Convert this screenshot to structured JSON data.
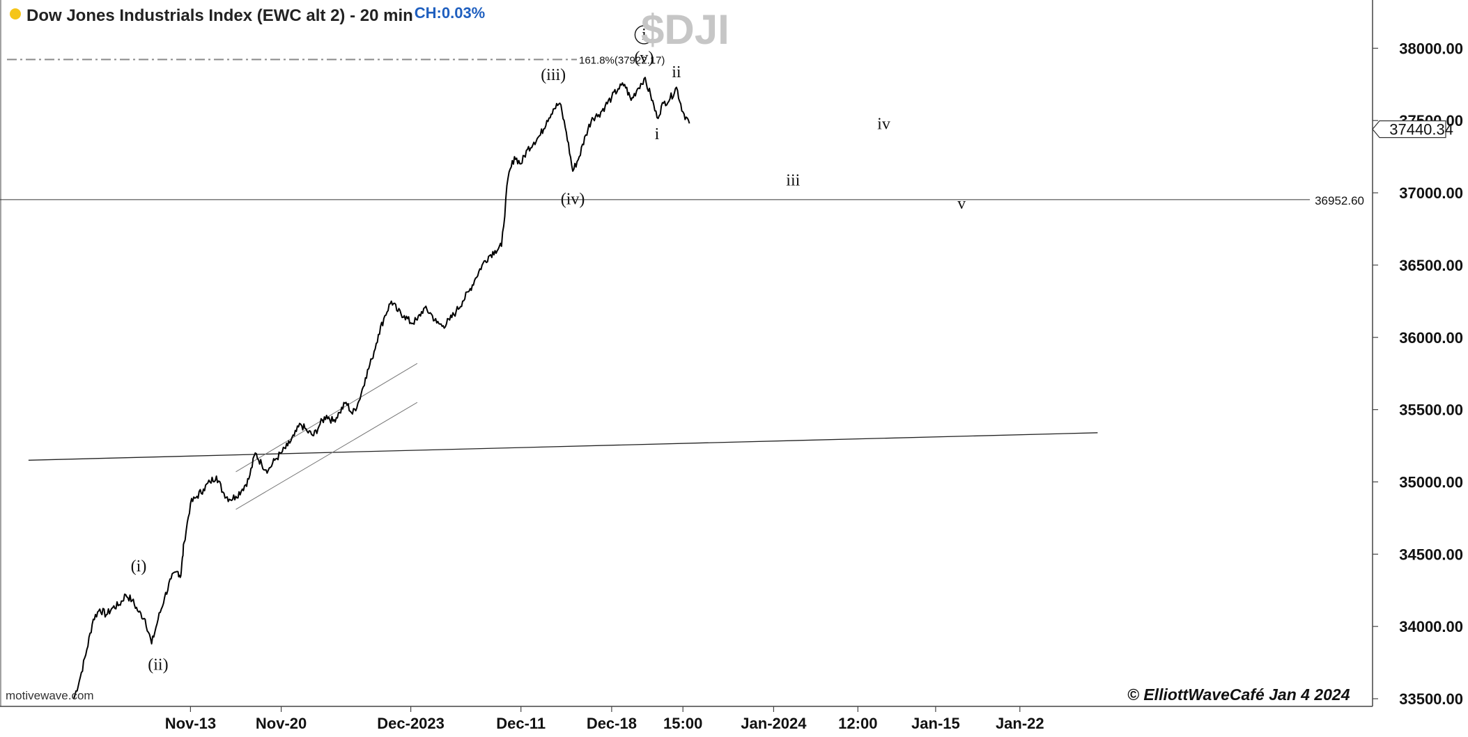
{
  "header": {
    "title": "Dow Jones Industrials Index (EWC alt 2) - 20 min",
    "change": "CH:0.03%",
    "symbol": "$DJI"
  },
  "footer": {
    "source": "motivewave.com",
    "copyright": "© ElliottWaveCafé Jan 4 2024"
  },
  "colors": {
    "price_line": "#000000",
    "fib_line": "#888888",
    "symbol_watermark": "#c6c6c6",
    "change_text": "#1f5fbf",
    "status_dot": "#f5c518"
  },
  "chart_data": {
    "type": "line",
    "title": "Dow Jones Industrials Index (EWC alt 2) - 20 min",
    "xlabel": "",
    "ylabel": "",
    "y_axis_side": "right",
    "ylim": [
      33500,
      38400
    ],
    "y_ticks": [
      33500,
      34000,
      34500,
      35000,
      35500,
      36000,
      36500,
      37000,
      37500,
      38000
    ],
    "y_tick_labels": [
      "33500.00",
      "34000.00",
      "34500.00",
      "35000.00",
      "35500.00",
      "36000.00",
      "36500.00",
      "37000.00",
      "37500.00",
      "38000.00"
    ],
    "x_ticks": [
      {
        "label": "Nov-13",
        "t": 18
      },
      {
        "label": "Nov-20",
        "t": 32
      },
      {
        "label": "Dec-2023",
        "t": 52
      },
      {
        "label": "Dec-11",
        "t": 69
      },
      {
        "label": "Dec-18",
        "t": 83
      },
      {
        "label": "15:00",
        "t": 94
      },
      {
        "label": "Jan-2024",
        "t": 108
      },
      {
        "label": "12:00",
        "t": 121
      },
      {
        "label": "Jan-15",
        "t": 133
      },
      {
        "label": "Jan-22",
        "t": 146
      }
    ],
    "series": [
      {
        "points": [
          [
            0,
            33500
          ],
          [
            1,
            33650
          ],
          [
            2,
            33840
          ],
          [
            3,
            34050
          ],
          [
            4,
            34120
          ],
          [
            5,
            34080
          ],
          [
            6,
            34130
          ],
          [
            7,
            34150
          ],
          [
            8,
            34220
          ],
          [
            9,
            34180
          ],
          [
            10,
            34100
          ],
          [
            11,
            34050
          ],
          [
            12,
            33880
          ],
          [
            13,
            34050
          ],
          [
            14,
            34200
          ],
          [
            15,
            34330
          ],
          [
            16,
            34380
          ],
          [
            16.5,
            34350
          ],
          [
            17,
            34580
          ],
          [
            18,
            34850
          ],
          [
            19,
            34900
          ],
          [
            20,
            34950
          ],
          [
            21,
            35000
          ],
          [
            22,
            35040
          ],
          [
            23,
            34930
          ],
          [
            24,
            34880
          ],
          [
            25,
            34900
          ],
          [
            26,
            34950
          ],
          [
            27,
            35020
          ],
          [
            28,
            35200
          ],
          [
            29,
            35120
          ],
          [
            30,
            35080
          ],
          [
            31,
            35150
          ],
          [
            32,
            35200
          ],
          [
            33,
            35250
          ],
          [
            34,
            35320
          ],
          [
            35,
            35400
          ],
          [
            36,
            35350
          ],
          [
            37,
            35320
          ],
          [
            38,
            35400
          ],
          [
            39,
            35460
          ],
          [
            40,
            35420
          ],
          [
            41,
            35480
          ],
          [
            42,
            35550
          ],
          [
            43,
            35470
          ],
          [
            44,
            35560
          ],
          [
            45,
            35720
          ],
          [
            46,
            35850
          ],
          [
            47,
            36020
          ],
          [
            48,
            36150
          ],
          [
            49,
            36250
          ],
          [
            50,
            36180
          ],
          [
            51,
            36150
          ],
          [
            52,
            36100
          ],
          [
            53,
            36120
          ],
          [
            54,
            36200
          ],
          [
            55,
            36170
          ],
          [
            56,
            36100
          ],
          [
            57,
            36080
          ],
          [
            58,
            36120
          ],
          [
            59,
            36180
          ],
          [
            60,
            36250
          ],
          [
            61,
            36320
          ],
          [
            62,
            36410
          ],
          [
            63,
            36500
          ],
          [
            64,
            36560
          ],
          [
            65,
            36600
          ],
          [
            66,
            36630
          ],
          [
            67,
            37100
          ],
          [
            68,
            37250
          ],
          [
            69,
            37200
          ],
          [
            70,
            37300
          ],
          [
            71,
            37350
          ],
          [
            72,
            37400
          ],
          [
            73,
            37500
          ],
          [
            74,
            37580
          ],
          [
            75,
            37620
          ],
          [
            76,
            37420
          ],
          [
            77,
            37150
          ],
          [
            78,
            37250
          ],
          [
            79,
            37400
          ],
          [
            80,
            37520
          ],
          [
            81,
            37540
          ],
          [
            82,
            37600
          ],
          [
            83,
            37660
          ],
          [
            84,
            37720
          ],
          [
            85,
            37750
          ],
          [
            86,
            37640
          ],
          [
            87,
            37720
          ],
          [
            88,
            37790
          ],
          [
            89,
            37680
          ],
          [
            90,
            37520
          ],
          [
            91,
            37620
          ],
          [
            92,
            37650
          ],
          [
            93,
            37730
          ],
          [
            94,
            37560
          ],
          [
            95,
            37480
          ]
        ]
      }
    ],
    "horizontal_level": {
      "value": 36952.6,
      "label": "36952.60"
    },
    "fib_level": {
      "value": 37922.17,
      "label": "161.8%(37922.17)"
    },
    "last_price": {
      "value": 37440.34,
      "label": "37440.34"
    },
    "trendline": {
      "start": [
        -7,
        35150
      ],
      "end": [
        158,
        35340
      ]
    },
    "channel": {
      "lower": {
        "start": [
          25,
          34810
        ],
        "end": [
          53,
          35550
        ]
      },
      "upper": {
        "start": [
          25,
          35070
        ],
        "end": [
          53,
          35820
        ]
      }
    },
    "wave_labels": [
      {
        "text": "(i)",
        "t": 10,
        "v": 34380
      },
      {
        "text": "(ii)",
        "t": 13,
        "v": 33700
      },
      {
        "text": "(iii)",
        "t": 74,
        "v": 37780
      },
      {
        "text": "(iv)",
        "t": 77,
        "v": 36920
      },
      {
        "text": "(v)",
        "t": 88,
        "v": 37900
      },
      {
        "text": "i",
        "t": 90,
        "v": 37370
      },
      {
        "text": "ii",
        "t": 93,
        "v": 37800
      },
      {
        "text": "iii",
        "t": 111,
        "v": 37050
      },
      {
        "text": "iv",
        "t": 125,
        "v": 37440
      },
      {
        "text": "v",
        "t": 137,
        "v": 36890
      }
    ],
    "circled_labels": [
      {
        "text": "i",
        "t": 88,
        "v": 38060
      }
    ]
  }
}
